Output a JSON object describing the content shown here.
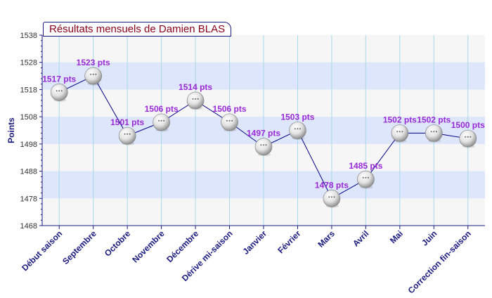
{
  "chart_data": {
    "type": "line",
    "title": "Résultats mensuels de Damien BLAS",
    "ylabel": "Points",
    "xlabel": "",
    "ylim": [
      1468,
      1538
    ],
    "yticks": [
      1468,
      1478,
      1488,
      1498,
      1508,
      1518,
      1528,
      1538
    ],
    "grid": true,
    "value_suffix": " pts",
    "categories": [
      "Début saison",
      "Septembre",
      "Octobre",
      "Novembre",
      "Décembre",
      "Dérive mi-saison",
      "Janvier",
      "Février",
      "Mars",
      "Avril",
      "Mai",
      "Juin",
      "Correction fin-saison"
    ],
    "series": [
      {
        "values": [
          1517,
          1523,
          1501,
          1506,
          1514,
          1506,
          1497,
          1503,
          1478,
          1485,
          1502,
          1502,
          1500
        ]
      }
    ],
    "colors": {
      "line": "#00008b",
      "band": "#dde6fa",
      "plot_bg": "#f6f6f6",
      "grid_vertical": "#a8d8ea",
      "value_label": "#9a2ad8",
      "category_label": "#1a1a80",
      "title_text": "#8b0018"
    },
    "marker_icon": "ping-pong-ball-icon"
  }
}
